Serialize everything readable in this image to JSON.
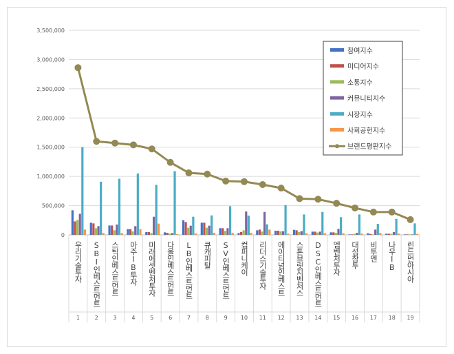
{
  "chart_data": {
    "type": "bar",
    "combo_line_series": "브랜드평판지수",
    "categories": [
      "우리기술투자",
      "SBI인베스트먼트",
      "스틱인베스트먼트",
      "아주IB투자",
      "미래에셋벤처투자",
      "다올인베스트먼트",
      "LB인베스트먼트",
      "큐캐피탈",
      "SV인베스트먼트",
      "컴퍼니케이",
      "리더스기술투자",
      "에이티넘인베스트",
      "스톤브릿지벤처스",
      "DSC인베스트먼트",
      "엠벤처투자",
      "대성창투",
      "비투엔",
      "나우IB",
      "린드먼아시아"
    ],
    "ranks": [
      "1",
      "2",
      "3",
      "4",
      "5",
      "6",
      "7",
      "8",
      "9",
      "10",
      "11",
      "12",
      "13",
      "14",
      "15",
      "16",
      "17",
      "18",
      "19"
    ],
    "ylim": [
      0,
      3500000
    ],
    "yticks": [
      "0",
      "500,000",
      "1,000,000",
      "1,500,000",
      "2,000,000",
      "2,500,000",
      "3,000,000",
      "3,500,000"
    ],
    "grid": true,
    "legend_position": "top-right",
    "series": [
      {
        "name": "참여지수",
        "type": "bar",
        "color": "#4472c4",
        "values": [
          420000,
          208000,
          160000,
          98000,
          47000,
          43000,
          250000,
          208000,
          114000,
          31000,
          78000,
          71000,
          86000,
          55000,
          43000,
          8000,
          27000,
          20000,
          8000
        ]
      },
      {
        "name": "미디어지수",
        "type": "bar",
        "color": "#c0504d",
        "values": [
          230000,
          196000,
          160000,
          98000,
          47000,
          35000,
          220000,
          208000,
          114000,
          47000,
          90000,
          71000,
          78000,
          55000,
          43000,
          8000,
          16000,
          20000,
          8000
        ]
      },
      {
        "name": "소통지수",
        "type": "bar",
        "color": "#9bbb59",
        "values": [
          255000,
          114000,
          78000,
          59000,
          31000,
          20000,
          122000,
          122000,
          67000,
          78000,
          55000,
          59000,
          47000,
          39000,
          35000,
          16000,
          8000,
          16000,
          8000
        ]
      },
      {
        "name": "커뮤니티지수",
        "type": "bar",
        "color": "#8064a2",
        "values": [
          360000,
          149000,
          176000,
          149000,
          310000,
          31000,
          157000,
          157000,
          114000,
          400000,
          392000,
          63000,
          63000,
          55000,
          102000,
          35000,
          90000,
          47000,
          8000
        ]
      },
      {
        "name": "시장지수",
        "type": "bar",
        "color": "#4bacc6",
        "values": [
          1500000,
          909000,
          960000,
          1050000,
          855000,
          1090000,
          310000,
          333000,
          490000,
          329000,
          180000,
          510000,
          349000,
          392000,
          302000,
          349000,
          188000,
          274000,
          196000
        ]
      },
      {
        "name": "사회공헌지수",
        "type": "bar",
        "color": "#f79646",
        "values": [
          90000,
          31000,
          31000,
          98000,
          192000,
          12000,
          24000,
          35000,
          35000,
          35000,
          90000,
          20000,
          27000,
          27000,
          27000,
          20000,
          35000,
          20000,
          16000
        ]
      },
      {
        "name": "브랜드평판지수",
        "type": "line",
        "color": "#938953",
        "values": [
          2860000,
          1600000,
          1570000,
          1540000,
          1470000,
          1240000,
          1060000,
          1040000,
          920000,
          910000,
          860000,
          800000,
          620000,
          610000,
          540000,
          460000,
          390000,
          390000,
          260000
        ]
      }
    ]
  }
}
